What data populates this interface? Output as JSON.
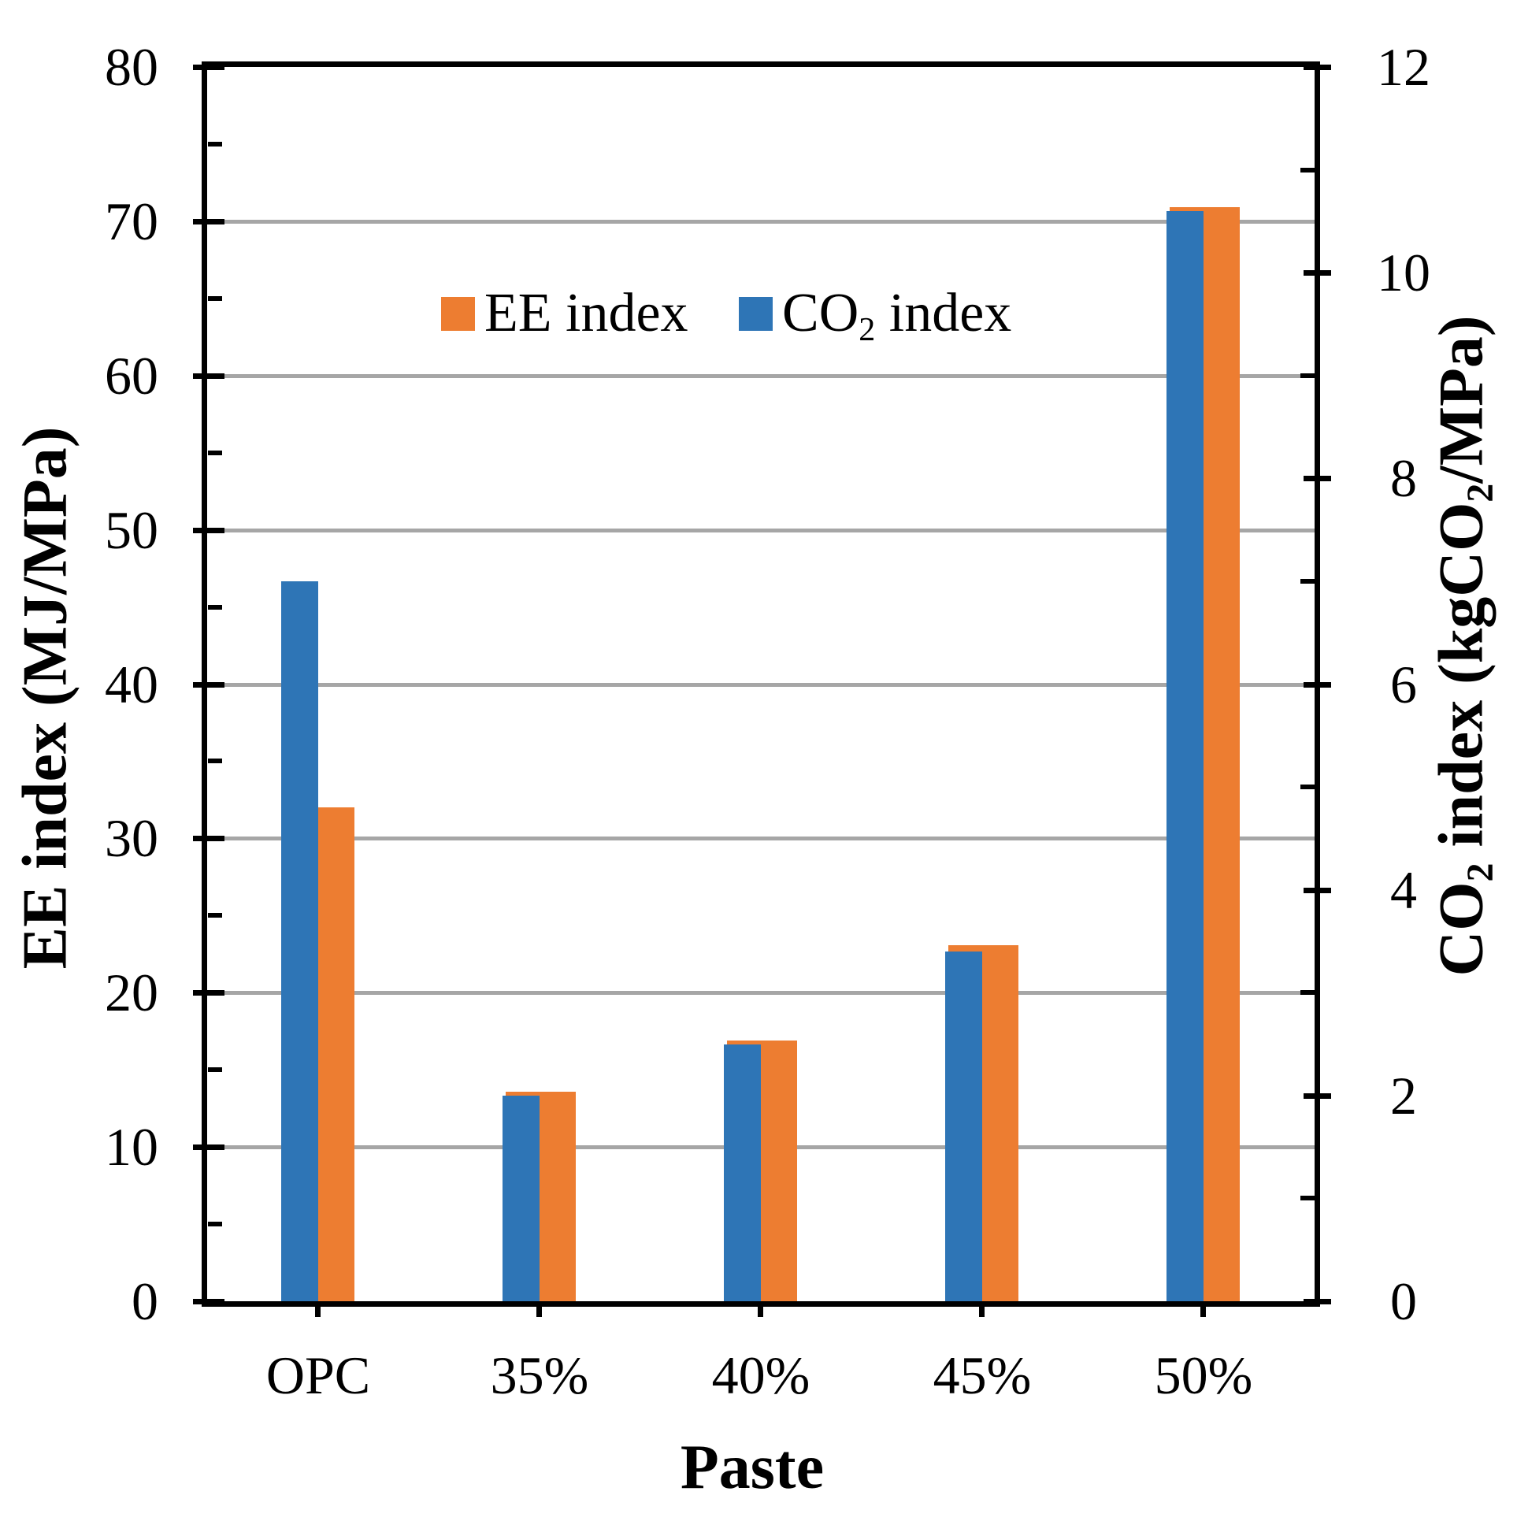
{
  "chart_data": {
    "type": "bar",
    "title": "",
    "categories": [
      "OPC",
      "35%",
      "40%",
      "45%",
      "50%"
    ],
    "series": [
      {
        "name": "EE index",
        "axis": "left",
        "color": "#ED7D31",
        "values": [
          32.0,
          13.6,
          16.9,
          23.1,
          70.9
        ]
      },
      {
        "name": "CO2 index",
        "axis": "right",
        "color": "#2E75B6",
        "values": [
          7.0,
          2.0,
          2.5,
          3.4,
          10.6
        ]
      }
    ],
    "x_axis": {
      "title": "Paste",
      "tick_labels": [
        "OPC",
        "35%",
        "40%",
        "45%",
        "50%"
      ]
    },
    "left_axis": {
      "title": "EE index (MJ/MPa)",
      "min": 0,
      "max": 80,
      "major_step": 10,
      "minor_step": 5,
      "tick_labels": [
        "0",
        "10",
        "20",
        "30",
        "40",
        "50",
        "60",
        "70",
        "80"
      ]
    },
    "right_axis": {
      "title": "CO2 index (kgCO2/MPa)",
      "title_parts": [
        {
          "t": "CO"
        },
        {
          "t": "2",
          "sub": true
        },
        {
          "t": " index (kgCO"
        },
        {
          "t": "2",
          "sub": true
        },
        {
          "t": "/MPa)"
        }
      ],
      "min": 0,
      "max": 12,
      "major_step": 2,
      "minor_step": 1,
      "tick_labels": [
        "0",
        "2",
        "4",
        "6",
        "8",
        "10",
        "12"
      ]
    },
    "legend": {
      "position": "top-inside",
      "items": [
        {
          "label": "EE index",
          "color": "#ED7D31"
        },
        {
          "label": "CO2 index",
          "label_parts": [
            {
              "t": "CO"
            },
            {
              "t": "2",
              "sub": true
            },
            {
              "t": " index"
            }
          ],
          "color": "#2E75B6"
        }
      ]
    },
    "grid": {
      "show": true,
      "color": "#A6A6A6",
      "values": [
        10,
        20,
        30,
        40,
        50,
        60,
        70
      ]
    },
    "colors": {
      "axis": "#000000",
      "background": "#FFFFFF"
    }
  }
}
